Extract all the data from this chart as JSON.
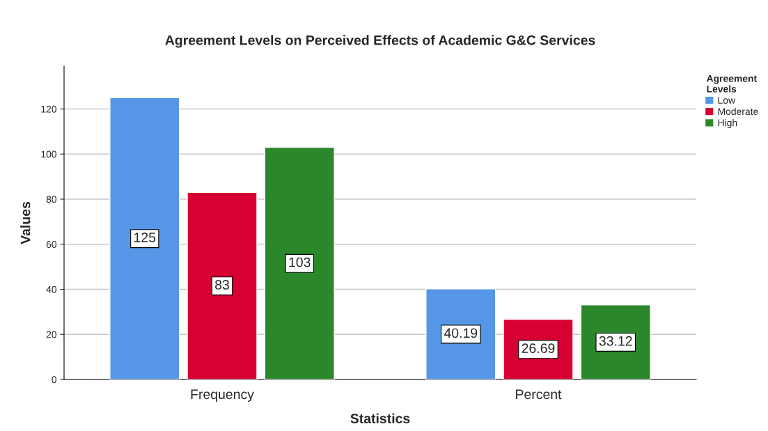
{
  "chart_data": {
    "type": "bar",
    "title": "Agreement Levels on Perceived Effects of Academic G&C Services",
    "xlabel": "Statistics",
    "ylabel": "Values",
    "legend_title": "Agreement\nLevels",
    "categories": [
      "Frequency",
      "Percent"
    ],
    "series": [
      {
        "name": "Low",
        "color": "#5596e6",
        "values": [
          125,
          40.19
        ]
      },
      {
        "name": "Moderate",
        "color": "#d60032",
        "values": [
          83,
          26.69
        ]
      },
      {
        "name": "High",
        "color": "#2a882a",
        "values": [
          103,
          33.12
        ]
      }
    ],
    "ylim": [
      0,
      139
    ],
    "yticks": [
      0,
      20,
      40,
      60,
      80,
      100,
      120
    ],
    "grid": "y",
    "legend": "top right",
    "data_labels": true
  }
}
